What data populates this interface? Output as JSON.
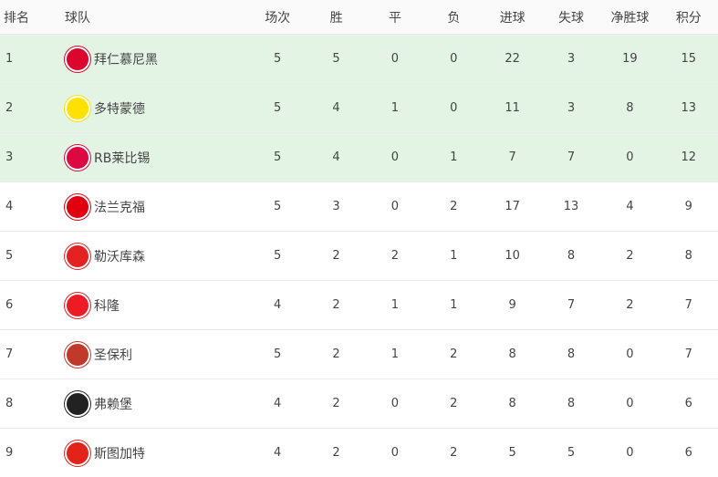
{
  "headers": [
    "排名",
    "球队",
    "场次",
    "胜",
    "平",
    "负",
    "进球",
    "失球",
    "净胜球",
    "积分"
  ],
  "rows": [
    {
      "rank": "1",
      "team": "拜仁慕尼黑",
      "logo": "bayern-logo",
      "color": "#dc052d",
      "p": "5",
      "w": "5",
      "d": "0",
      "l": "0",
      "gf": "22",
      "ga": "3",
      "gd": "19",
      "pts": "15",
      "highlight": true
    },
    {
      "rank": "2",
      "team": "多特蒙德",
      "logo": "dortmund-logo",
      "color": "#fde100",
      "p": "5",
      "w": "4",
      "d": "1",
      "l": "0",
      "gf": "11",
      "ga": "3",
      "gd": "8",
      "pts": "13",
      "highlight": true
    },
    {
      "rank": "3",
      "team": "RB莱比锡",
      "logo": "leipzig-logo",
      "color": "#dd0741",
      "p": "5",
      "w": "4",
      "d": "0",
      "l": "1",
      "gf": "7",
      "ga": "7",
      "gd": "0",
      "pts": "12",
      "highlight": true
    },
    {
      "rank": "4",
      "team": "法兰克福",
      "logo": "frankfurt-logo",
      "color": "#e1000f",
      "p": "5",
      "w": "3",
      "d": "0",
      "l": "2",
      "gf": "17",
      "ga": "13",
      "gd": "4",
      "pts": "9",
      "highlight": false
    },
    {
      "rank": "5",
      "team": "勒沃库森",
      "logo": "leverkusen-logo",
      "color": "#e32221",
      "p": "5",
      "w": "2",
      "d": "2",
      "l": "1",
      "gf": "10",
      "ga": "8",
      "gd": "2",
      "pts": "8",
      "highlight": false
    },
    {
      "rank": "6",
      "team": "科隆",
      "logo": "koln-logo",
      "color": "#ed1c24",
      "p": "4",
      "w": "2",
      "d": "1",
      "l": "1",
      "gf": "9",
      "ga": "7",
      "gd": "2",
      "pts": "7",
      "highlight": false
    },
    {
      "rank": "7",
      "team": "圣保利",
      "logo": "st-pauli-logo",
      "color": "#c0392b",
      "p": "5",
      "w": "2",
      "d": "1",
      "l": "2",
      "gf": "8",
      "ga": "8",
      "gd": "0",
      "pts": "7",
      "highlight": false
    },
    {
      "rank": "8",
      "team": "弗赖堡",
      "logo": "freiburg-logo",
      "color": "#222222",
      "p": "4",
      "w": "2",
      "d": "0",
      "l": "2",
      "gf": "8",
      "ga": "8",
      "gd": "0",
      "pts": "6",
      "highlight": false
    },
    {
      "rank": "9",
      "team": "斯图加特",
      "logo": "stuttgart-logo",
      "color": "#e32219",
      "p": "4",
      "w": "2",
      "d": "0",
      "l": "2",
      "gf": "5",
      "ga": "5",
      "gd": "0",
      "pts": "6",
      "highlight": false
    }
  ]
}
